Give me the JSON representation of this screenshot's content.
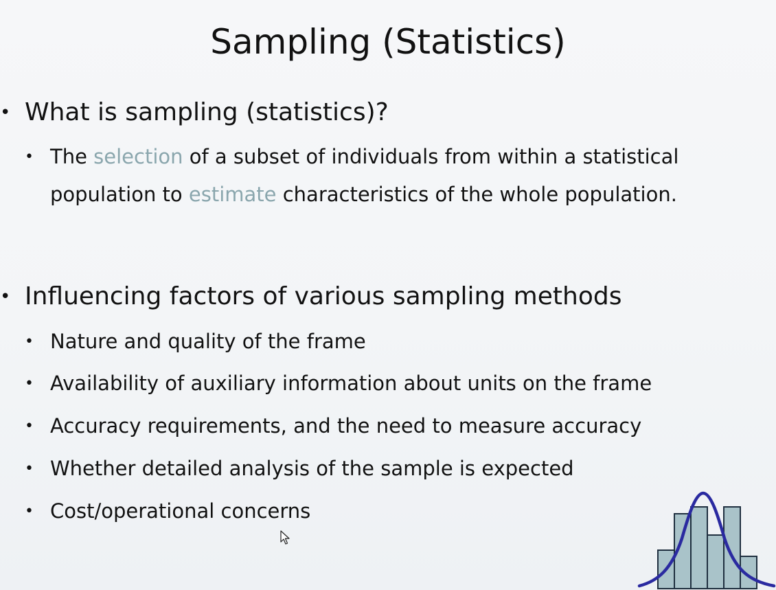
{
  "slide": {
    "title": "Sampling (Statistics)",
    "q1": {
      "heading": "What is sampling (statistics)?",
      "definition": {
        "line1_pre": "The ",
        "line1_hl": "selection",
        "line1_post": " of a subset of individuals from within a statistical",
        "line2_pre": "population to ",
        "line2_hl": "estimate",
        "line2_post": " characteristics of the whole population."
      }
    },
    "q2": {
      "heading": "Influencing factors of various sampling methods",
      "items": [
        "Nature and quality of the frame",
        "Availability of auxiliary information about units on the frame",
        "Accuracy requirements, and the need to measure accuracy",
        "Whether detailed analysis of the sample is expected",
        "Cost/operational concerns"
      ]
    },
    "bullet_char": "•",
    "colors": {
      "highlight": "#8aa6ad",
      "bell_curve": "#2a2aa0",
      "histogram_fill": "#a9c3c9",
      "histogram_stroke": "#1f2f3f"
    }
  }
}
